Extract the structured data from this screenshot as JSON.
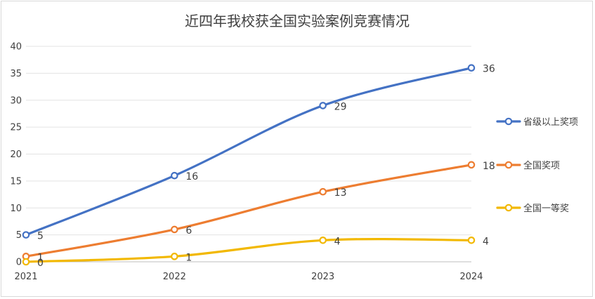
{
  "chart_data": {
    "type": "line",
    "title": "近四年我校获全国实验案例竞赛情况",
    "xlabel": "",
    "ylabel": "",
    "x": [
      "2021",
      "2022",
      "2023",
      "2024"
    ],
    "ylim": [
      0,
      40
    ],
    "yticks": [
      0,
      5,
      10,
      15,
      20,
      25,
      30,
      35,
      40
    ],
    "grid": true,
    "legend_position": "right",
    "smooth": true,
    "series": [
      {
        "name": "省级以上奖项",
        "values": [
          5,
          16,
          29,
          36
        ],
        "color": "#4472C4"
      },
      {
        "name": "全国奖项",
        "values": [
          1,
          6,
          13,
          18
        ],
        "color": "#ED7D31"
      },
      {
        "name": "全国一等奖",
        "values": [
          0,
          1,
          4,
          4
        ],
        "color": "#F2B800"
      }
    ]
  }
}
